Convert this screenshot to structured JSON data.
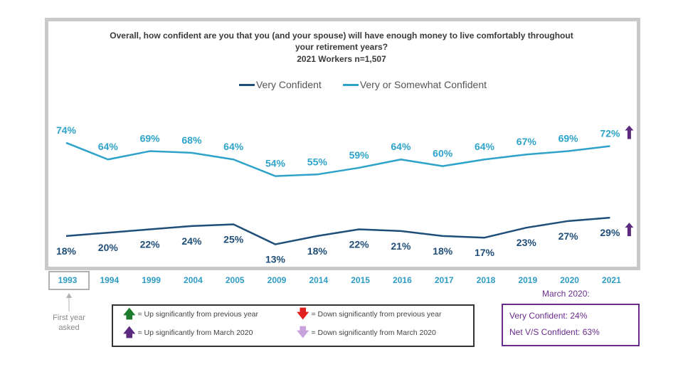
{
  "chart_data": {
    "type": "line",
    "title": "Overall, how confident are you that you (and your spouse) will have enough money to live comfortably throughout your retirement years?",
    "subtitle": "2021 Workers n=1,507",
    "categories": [
      "1993",
      "1994",
      "1999",
      "2004",
      "2005",
      "2009",
      "2014",
      "2015",
      "2016",
      "2017",
      "2018",
      "2019",
      "2020",
      "2021"
    ],
    "series": [
      {
        "name": "Very Confident",
        "color": "#1f4e79",
        "values": [
          18,
          20,
          22,
          24,
          25,
          13,
          18,
          22,
          21,
          18,
          17,
          23,
          27,
          29
        ],
        "sig_up_march_2020": [
          "2021"
        ]
      },
      {
        "name": "Very or Somewhat Confident",
        "color": "#2ea3c9",
        "values": [
          74,
          64,
          69,
          68,
          64,
          54,
          55,
          59,
          64,
          60,
          64,
          67,
          69,
          72
        ],
        "sig_up_march_2020": [
          "2021"
        ]
      }
    ],
    "value_suffix": "%",
    "ylim": [
      0,
      100
    ],
    "grid": false,
    "legend_position": "top",
    "highlighted_category": "1993"
  },
  "first_year_note": "First year asked",
  "key": {
    "up_prev": {
      "label": "= Up significantly from previous year",
      "color": "#1e7b2e",
      "icon": "arrow-up"
    },
    "down_prev": {
      "label": "= Down significantly from previous year",
      "color": "#e02020",
      "icon": "arrow-down"
    },
    "up_march": {
      "label": "= Up significantly from March 2020",
      "color": "#5b2a7e",
      "icon": "arrow-up"
    },
    "down_march": {
      "label": "= Down significantly from March 2020",
      "color": "#c8a2dc",
      "icon": "arrow-down"
    }
  },
  "march2020": {
    "heading": "March 2020:",
    "very_confident": "Very Confident: 24%",
    "net": "Net V/S Confident: 63%"
  }
}
